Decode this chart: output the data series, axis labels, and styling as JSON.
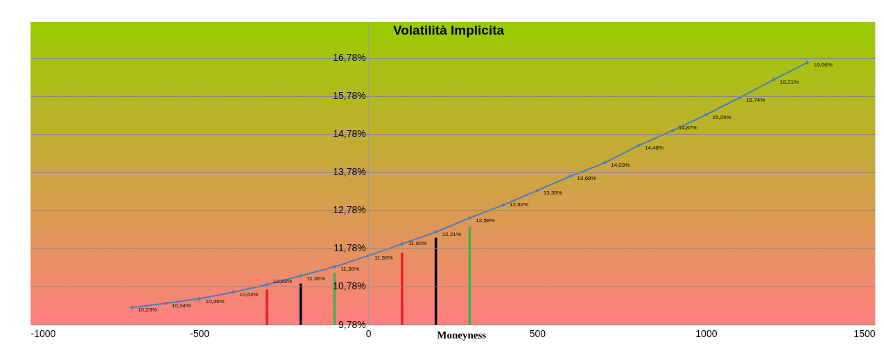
{
  "chart_data": {
    "type": "line",
    "title": "Volatilità Implicita",
    "xlabel": "Moneyness",
    "xlim": [
      -1000,
      1500
    ],
    "xticks": [
      -1000,
      -500,
      0,
      500,
      1000,
      1500
    ],
    "ylim": [
      9.78,
      17.72
    ],
    "yticks": [
      {
        "value": 9.78,
        "label": "9,78%"
      },
      {
        "value": 10.78,
        "label": "10,78%"
      },
      {
        "value": 11.78,
        "label": "11,78%"
      },
      {
        "value": 12.78,
        "label": "12,78%"
      },
      {
        "value": 13.78,
        "label": "13,78%"
      },
      {
        "value": 14.78,
        "label": "14,78%"
      },
      {
        "value": 15.78,
        "label": "15,78%"
      },
      {
        "value": 16.78,
        "label": "16,78%"
      }
    ],
    "grid": "y",
    "marker": "diamond",
    "line_style": "solid",
    "series": [
      {
        "color": "#4a7ebb",
        "x": [
          -700,
          -600,
          -500,
          -400,
          -300,
          -200,
          -100,
          0,
          100,
          200,
          300,
          400,
          500,
          600,
          700,
          800,
          900,
          1000,
          1100,
          1200,
          1300
        ],
        "values": [
          10.23,
          10.34,
          10.46,
          10.63,
          10.83,
          11.06,
          11.3,
          11.59,
          11.9,
          12.21,
          12.58,
          12.92,
          13.3,
          13.68,
          14.03,
          14.48,
          14.87,
          15.29,
          15.74,
          16.21,
          16.66
        ],
        "value_labels": [
          "10,23%",
          "10,34%",
          "10,46%",
          "10,63%",
          "10,83%",
          "11,06%",
          "11,30%",
          "11,59%",
          "11,90%",
          "12,21%",
          "12,58%",
          "12,92%",
          "13,30%",
          "13,68%",
          "14,03%",
          "14,48%",
          "14,87%",
          "15,29%",
          "15,74%",
          "16,21%",
          "16,66%"
        ]
      },
      {
        "type": "bar",
        "x": [
          -300,
          -200,
          -100,
          100,
          200,
          300
        ],
        "values": [
          10.7,
          10.86,
          11.14,
          11.67,
          12.06,
          12.35
        ],
        "colors": [
          "#ee1c25",
          "#000000",
          "#3cb44b",
          "#ee1c25",
          "#000000",
          "#3cb44b"
        ]
      }
    ]
  }
}
